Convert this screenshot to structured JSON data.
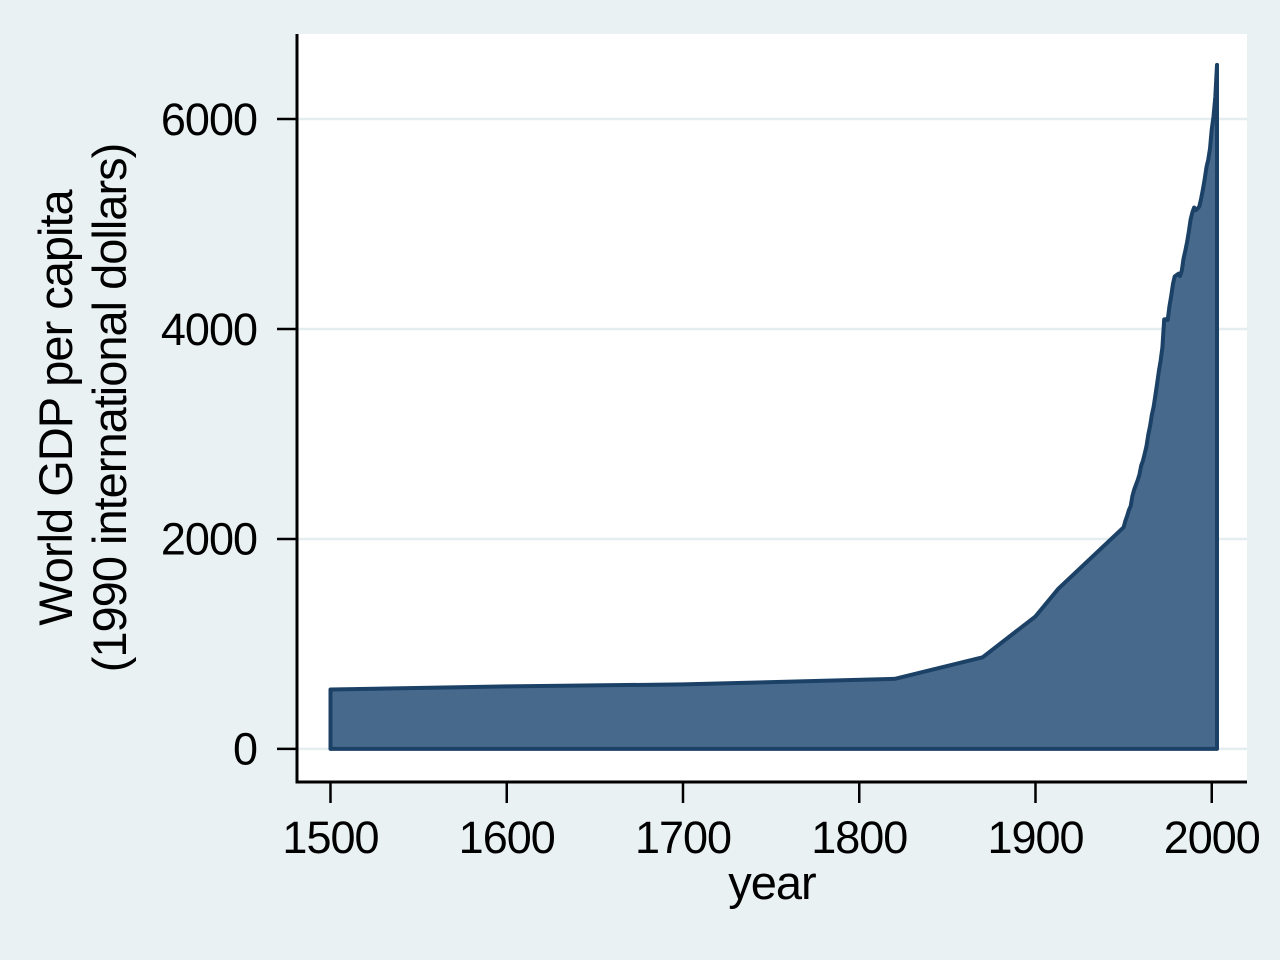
{
  "chart_data": {
    "type": "area",
    "title": "",
    "xlabel": "year",
    "ylabel": "World GDP per capita (1990 international dollars)",
    "ylabel_lines": [
      "World GDP per capita",
      "(1990 international dollars)"
    ],
    "x_ticks": [
      1500,
      1600,
      1700,
      1800,
      1900,
      2000
    ],
    "y_ticks": [
      0,
      2000,
      4000,
      6000
    ],
    "xlim": [
      1481,
      2020
    ],
    "ylim": [
      -315,
      6810
    ],
    "grid": true,
    "legend": "none",
    "series": [
      {
        "name": "World GDP per capita",
        "points": [
          [
            1500,
            566
          ],
          [
            1600,
            596
          ],
          [
            1700,
            615
          ],
          [
            1820,
            667
          ],
          [
            1870,
            873
          ],
          [
            1900,
            1262
          ],
          [
            1913,
            1526
          ],
          [
            1950,
            2111
          ],
          [
            1951,
            2173
          ],
          [
            1952,
            2218
          ],
          [
            1953,
            2275
          ],
          [
            1954,
            2313
          ],
          [
            1955,
            2409
          ],
          [
            1956,
            2470
          ],
          [
            1957,
            2517
          ],
          [
            1958,
            2560
          ],
          [
            1959,
            2616
          ],
          [
            1960,
            2699
          ],
          [
            1961,
            2747
          ],
          [
            1962,
            2816
          ],
          [
            1963,
            2886
          ],
          [
            1964,
            2995
          ],
          [
            1965,
            3077
          ],
          [
            1966,
            3181
          ],
          [
            1967,
            3258
          ],
          [
            1968,
            3363
          ],
          [
            1969,
            3479
          ],
          [
            1970,
            3601
          ],
          [
            1971,
            3696
          ],
          [
            1972,
            3825
          ],
          [
            1973,
            4091
          ],
          [
            1974,
            4093
          ],
          [
            1975,
            4086
          ],
          [
            1976,
            4213
          ],
          [
            1977,
            4314
          ],
          [
            1978,
            4431
          ],
          [
            1979,
            4501
          ],
          [
            1980,
            4512
          ],
          [
            1981,
            4526
          ],
          [
            1982,
            4505
          ],
          [
            1983,
            4556
          ],
          [
            1984,
            4669
          ],
          [
            1985,
            4745
          ],
          [
            1986,
            4829
          ],
          [
            1987,
            4926
          ],
          [
            1988,
            5043
          ],
          [
            1989,
            5112
          ],
          [
            1990,
            5157
          ],
          [
            1991,
            5133
          ],
          [
            1992,
            5147
          ],
          [
            1993,
            5169
          ],
          [
            1994,
            5245
          ],
          [
            1995,
            5330
          ],
          [
            1996,
            5429
          ],
          [
            1997,
            5543
          ],
          [
            1998,
            5610
          ],
          [
            1999,
            5717
          ],
          [
            2000,
            5899
          ],
          [
            2001,
            6023
          ],
          [
            2002,
            6210
          ],
          [
            2003,
            6516
          ]
        ]
      }
    ],
    "colors": {
      "background": "#eaf1f3",
      "plot_background": "#ffffff",
      "grid": "#e4edf0",
      "axis": "#000000",
      "text": "#000000",
      "area_fill": "#47698c",
      "area_line": "#1c4166"
    }
  }
}
